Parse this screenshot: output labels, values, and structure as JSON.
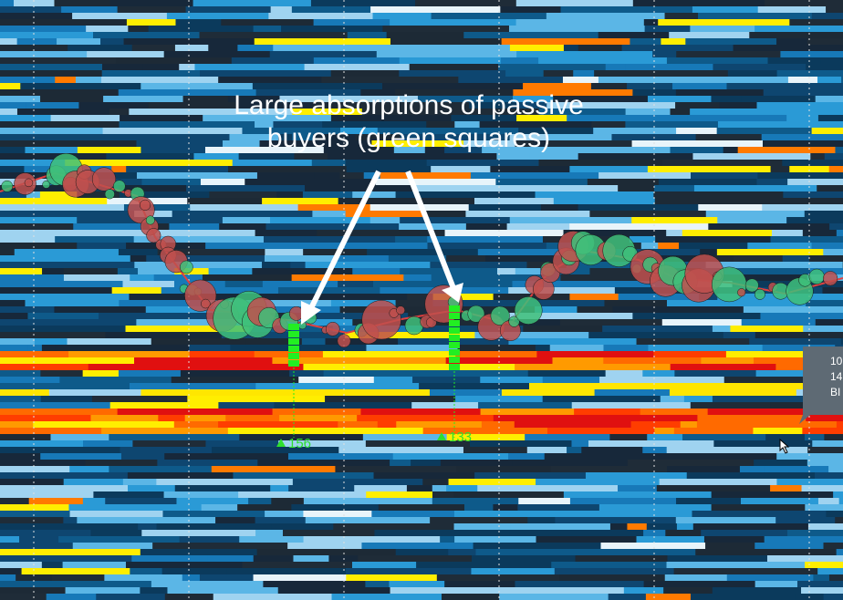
{
  "annotation": {
    "lines": [
      "Large absorptions of passive",
      "buyers (green squares)"
    ]
  },
  "markers": [
    {
      "label": "156"
    },
    {
      "label": "133"
    }
  ],
  "tooltip": {
    "lines": [
      "10",
      "14",
      "BI"
    ]
  }
}
